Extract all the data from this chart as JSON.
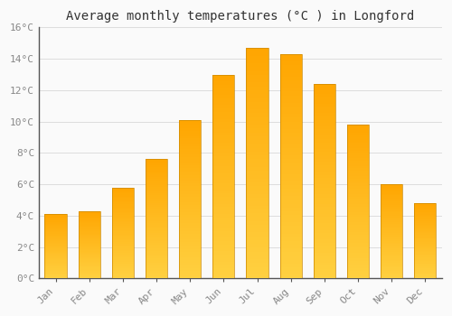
{
  "title": "Average monthly temperatures (°C ) in Longford",
  "months": [
    "Jan",
    "Feb",
    "Mar",
    "Apr",
    "May",
    "Jun",
    "Jul",
    "Aug",
    "Sep",
    "Oct",
    "Nov",
    "Dec"
  ],
  "temperatures": [
    4.1,
    4.3,
    5.8,
    7.6,
    10.1,
    13.0,
    14.7,
    14.3,
    12.4,
    9.8,
    6.0,
    4.8
  ],
  "bar_color_top": "#FFA500",
  "bar_color_bottom": "#FFD040",
  "background_color": "#FAFAFA",
  "grid_color": "#DDDDDD",
  "text_color": "#888888",
  "spine_color": "#555555",
  "ylim": [
    0,
    16
  ],
  "yticks": [
    0,
    2,
    4,
    6,
    8,
    10,
    12,
    14,
    16
  ],
  "ytick_labels": [
    "0°C",
    "2°C",
    "4°C",
    "6°C",
    "8°C",
    "10°C",
    "12°C",
    "14°C",
    "16°C"
  ],
  "title_fontsize": 10,
  "tick_fontsize": 8,
  "bar_width": 0.65,
  "n_grad": 60
}
